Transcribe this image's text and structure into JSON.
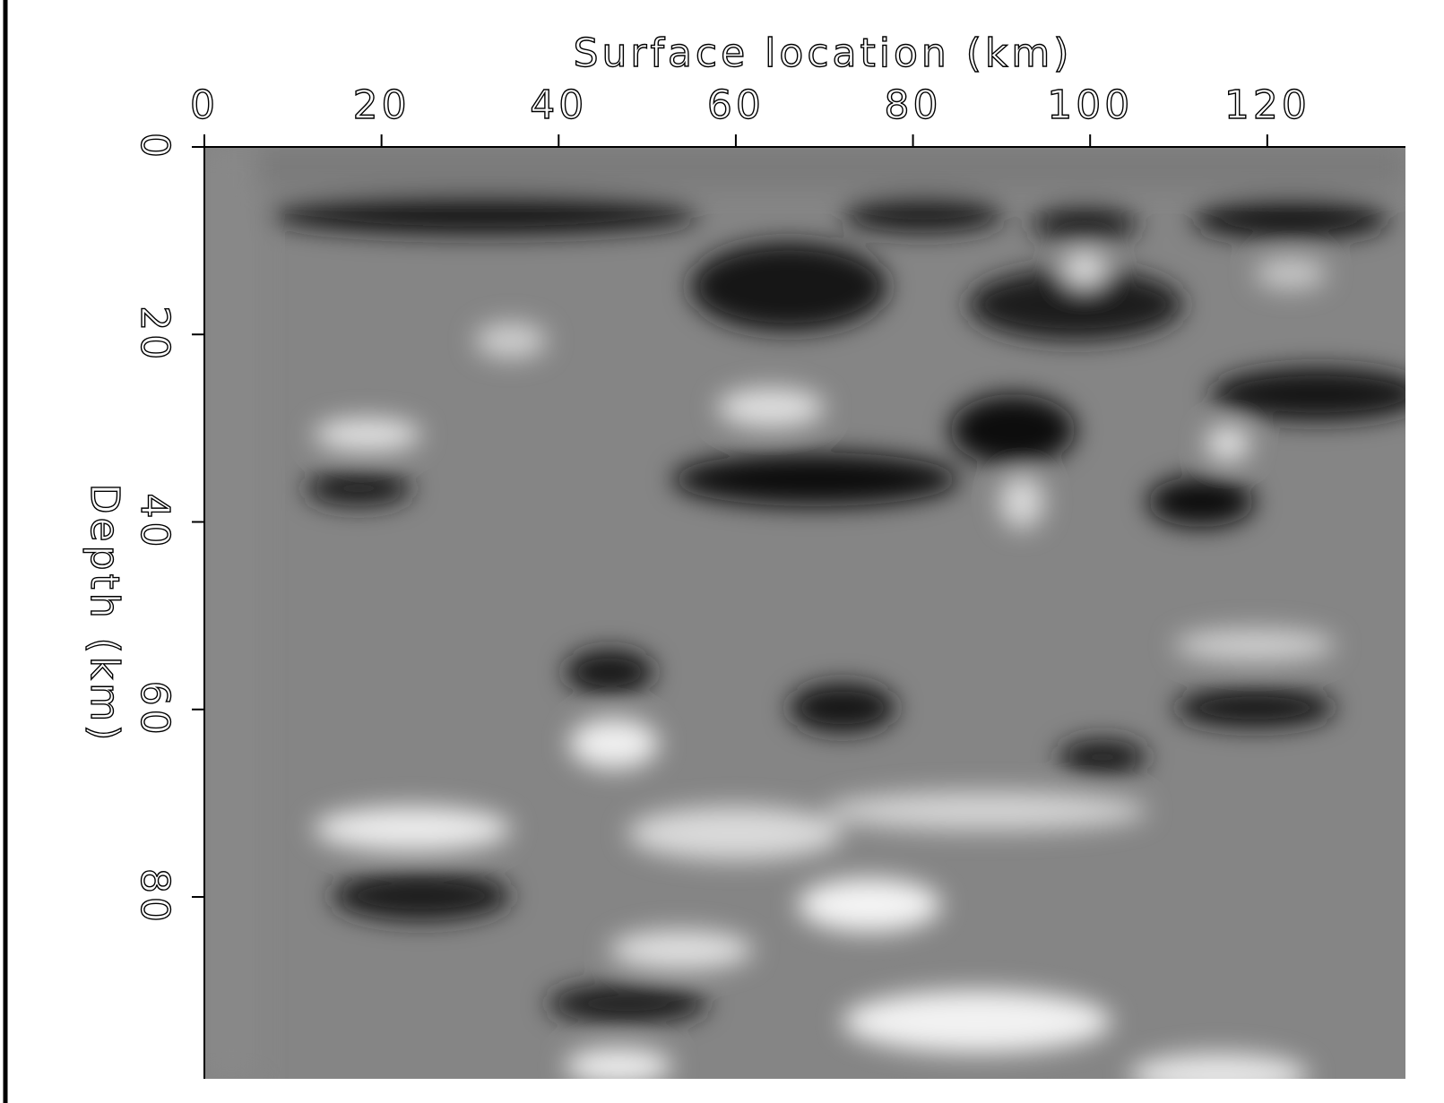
{
  "chart_data": {
    "type": "image",
    "xlabel": "Surface location (km)",
    "ylabel": "Depth (km)",
    "xlim": [
      0,
      135.6
    ],
    "ylim": [
      0,
      99.4
    ],
    "xticks": [
      0,
      20,
      40,
      60,
      80,
      100,
      120
    ],
    "yticks": [
      0,
      20,
      40,
      60,
      80
    ],
    "y_inverted": true,
    "x_axis_position": "top",
    "colormap": "gray"
  }
}
